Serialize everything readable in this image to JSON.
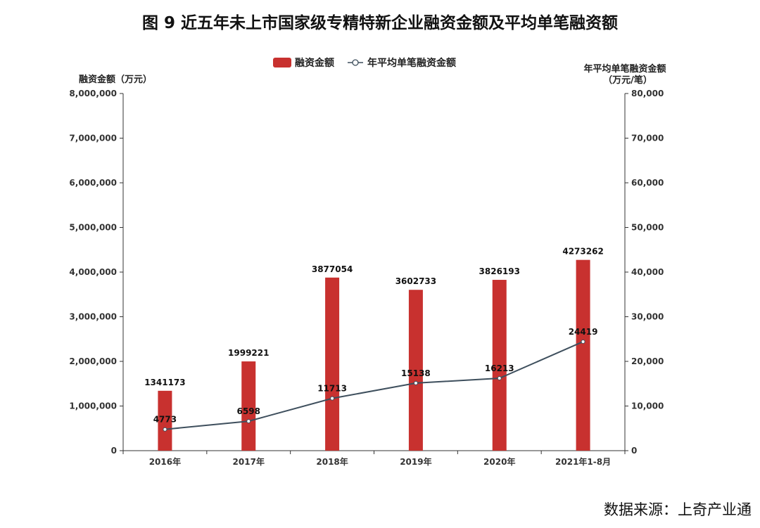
{
  "chart_data": {
    "type": "bar",
    "title": "图 9  近五年未上市国家级专精特新企业融资金额及平均单笔融资额",
    "categories": [
      "2016年",
      "2017年",
      "2018年",
      "2019年",
      "2020年",
      "2021年1-8月"
    ],
    "series": [
      {
        "name": "融资金额",
        "type": "bar",
        "axis": "left",
        "color": "#c8312f",
        "values": [
          1341173,
          1999221,
          3877054,
          3602733,
          3826193,
          4273262
        ]
      },
      {
        "name": "年平均单笔融资金额",
        "type": "line",
        "axis": "right",
        "color": "#3e4f5d",
        "values": [
          4773,
          6598,
          11713,
          15138,
          16213,
          24419
        ]
      }
    ],
    "ylabel": "融资金额（万元）",
    "ylabel_right_line1": "年平均单笔融资金额",
    "ylabel_right_line2": "（万元/笔）",
    "ylim": [
      0,
      8000000
    ],
    "ylim_right": [
      0,
      80000
    ],
    "yticks": [
      "0",
      "1,000,000",
      "2,000,000",
      "3,000,000",
      "4,000,000",
      "5,000,000",
      "6,000,000",
      "7,000,000",
      "8,000,000"
    ],
    "yticks_right": [
      "0",
      "10,000",
      "20,000",
      "30,000",
      "40,000",
      "50,000",
      "60,000",
      "70,000",
      "80,000"
    ],
    "grid": false,
    "legend": "top-center"
  },
  "source": "数据来源：上奇产业通"
}
